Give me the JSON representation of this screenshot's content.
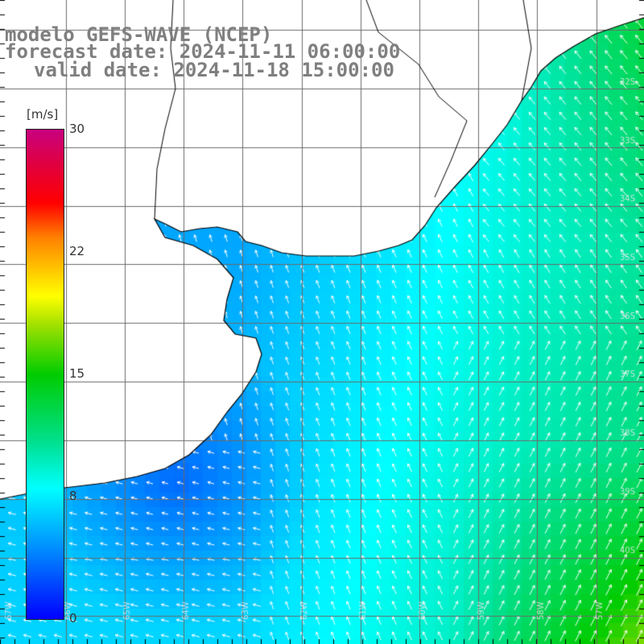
{
  "header": {
    "line1": "modelo GEFS-WAVE (NCEP)",
    "line2": "forecast date: 2024-11-11 06:00:00",
    "line3": "valid date: 2024-11-18 15:00:00"
  },
  "colorbar": {
    "unit": "[m/s]",
    "min": 0,
    "max": 30,
    "ticks": [
      "30",
      "22",
      "15",
      "8",
      "0"
    ]
  },
  "map": {
    "lat_labels": [
      "32S",
      "33S",
      "34S",
      "35S",
      "36S",
      "37S",
      "38S",
      "39S",
      "40S"
    ],
    "lon_labels": [
      "67W",
      "66W",
      "65W",
      "64W",
      "63W",
      "62W",
      "61W",
      "60W",
      "59W",
      "58W",
      "57W"
    ],
    "colors": {
      "land": "#ffffff",
      "grid": "#000000",
      "coast": "#000000",
      "arrow": "#ffffff"
    }
  }
}
